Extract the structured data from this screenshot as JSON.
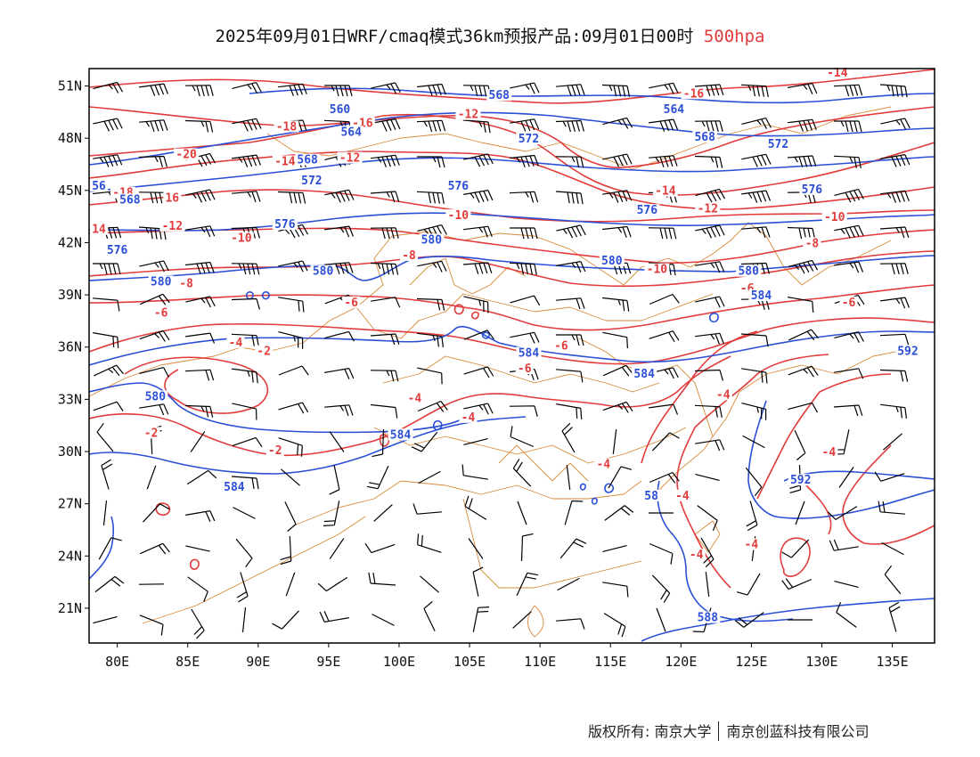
{
  "title": {
    "main": "2025年09月01日WRF/cmaq模式36km预报产品:09月01日00时",
    "level": "500hpa"
  },
  "colors": {
    "geopotential_contour": "#2a4fd6",
    "temperature_contour": "#e23b3b",
    "boundary": "#d98a3a",
    "wind_barb": "#000000",
    "frame": "#000000"
  },
  "axes": {
    "lon_range": [
      78,
      138
    ],
    "lat_range": [
      19,
      52
    ],
    "x_ticks": [
      "80E",
      "85E",
      "90E",
      "95E",
      "100E",
      "105E",
      "110E",
      "115E",
      "120E",
      "125E",
      "130E",
      "135E"
    ],
    "x_tick_values": [
      80,
      85,
      90,
      95,
      100,
      105,
      110,
      115,
      120,
      125,
      130,
      135
    ],
    "y_ticks": [
      "51N",
      "48N",
      "45N",
      "42N",
      "39N",
      "36N",
      "33N",
      "30N",
      "27N",
      "24N",
      "21N"
    ],
    "y_tick_values": [
      51,
      48,
      45,
      42,
      39,
      36,
      33,
      30,
      27,
      24,
      21
    ]
  },
  "layers": {
    "geopotential_height_labels": [
      {
        "text": "568",
        "lon": 107.1,
        "lat": 50.3
      },
      {
        "text": "560",
        "lon": 95.8,
        "lat": 49.5
      },
      {
        "text": "564",
        "lon": 119.5,
        "lat": 49.5
      },
      {
        "text": "564",
        "lon": 96.6,
        "lat": 48.2
      },
      {
        "text": "572",
        "lon": 109.2,
        "lat": 47.8
      },
      {
        "text": "568",
        "lon": 121.7,
        "lat": 47.9
      },
      {
        "text": "568",
        "lon": 93.5,
        "lat": 46.6
      },
      {
        "text": "572",
        "lon": 93.8,
        "lat": 45.4
      },
      {
        "text": "572",
        "lon": 126.9,
        "lat": 47.5
      },
      {
        "text": "576",
        "lon": 104.2,
        "lat": 45.1
      },
      {
        "text": "576",
        "lon": 129.3,
        "lat": 44.9
      },
      {
        "text": "56",
        "lon": 78.7,
        "lat": 45.1
      },
      {
        "text": "568",
        "lon": 80.9,
        "lat": 44.3
      },
      {
        "text": "576",
        "lon": 117.6,
        "lat": 43.7
      },
      {
        "text": "576",
        "lon": 91.9,
        "lat": 42.9
      },
      {
        "text": "576",
        "lon": 80.0,
        "lat": 41.4
      },
      {
        "text": "580",
        "lon": 102.3,
        "lat": 42.0
      },
      {
        "text": "580",
        "lon": 115.1,
        "lat": 40.8
      },
      {
        "text": "580",
        "lon": 94.6,
        "lat": 40.2
      },
      {
        "text": "580",
        "lon": 83.1,
        "lat": 39.6
      },
      {
        "text": "580",
        "lon": 124.8,
        "lat": 40.2
      },
      {
        "text": "584",
        "lon": 125.7,
        "lat": 38.8
      },
      {
        "text": "584",
        "lon": 109.2,
        "lat": 35.5
      },
      {
        "text": "584",
        "lon": 117.4,
        "lat": 34.3
      },
      {
        "text": "592",
        "lon": 136.1,
        "lat": 35.6
      },
      {
        "text": "580",
        "lon": 82.7,
        "lat": 33.0
      },
      {
        "text": "584",
        "lon": 100.1,
        "lat": 30.8
      },
      {
        "text": "592",
        "lon": 128.5,
        "lat": 28.2
      },
      {
        "text": "584",
        "lon": 88.3,
        "lat": 27.8
      },
      {
        "text": "58",
        "lon": 117.9,
        "lat": 27.3
      },
      {
        "text": "588",
        "lon": 121.9,
        "lat": 20.3
      }
    ],
    "temperature_labels": [
      {
        "text": "-16",
        "lon": 120.9,
        "lat": 50.4
      },
      {
        "text": "-14",
        "lon": 131.1,
        "lat": 51.6
      },
      {
        "text": "-12",
        "lon": 104.9,
        "lat": 49.2
      },
      {
        "text": "-18",
        "lon": 92.0,
        "lat": 48.5
      },
      {
        "text": "-16",
        "lon": 97.4,
        "lat": 48.7
      },
      {
        "text": "-20",
        "lon": 84.9,
        "lat": 46.9
      },
      {
        "text": "-14",
        "lon": 91.9,
        "lat": 46.5
      },
      {
        "text": "-12",
        "lon": 96.5,
        "lat": 46.7
      },
      {
        "text": "-18",
        "lon": 80.4,
        "lat": 44.7
      },
      {
        "text": "16",
        "lon": 83.9,
        "lat": 44.4
      },
      {
        "text": "-14",
        "lon": 118.9,
        "lat": 44.8
      },
      {
        "text": "-12",
        "lon": 121.9,
        "lat": 43.8
      },
      {
        "text": "-10",
        "lon": 104.2,
        "lat": 43.4
      },
      {
        "text": "-10",
        "lon": 130.9,
        "lat": 43.3
      },
      {
        "text": "-12",
        "lon": 83.9,
        "lat": 42.8
      },
      {
        "text": "14",
        "lon": 78.7,
        "lat": 42.6
      },
      {
        "text": "-10",
        "lon": 88.8,
        "lat": 42.1
      },
      {
        "text": "-8",
        "lon": 129.3,
        "lat": 41.8
      },
      {
        "text": "-8",
        "lon": 100.7,
        "lat": 41.1
      },
      {
        "text": "-10",
        "lon": 118.3,
        "lat": 40.3
      },
      {
        "text": "-8",
        "lon": 84.9,
        "lat": 39.5
      },
      {
        "text": "-6",
        "lon": 124.7,
        "lat": 39.2
      },
      {
        "text": "-6",
        "lon": 96.6,
        "lat": 38.4
      },
      {
        "text": "-6",
        "lon": 131.9,
        "lat": 38.4
      },
      {
        "text": "-6",
        "lon": 83.1,
        "lat": 37.8
      },
      {
        "text": "-4",
        "lon": 88.4,
        "lat": 36.1
      },
      {
        "text": "-6",
        "lon": 111.5,
        "lat": 35.9
      },
      {
        "text": "-2",
        "lon": 90.4,
        "lat": 35.6
      },
      {
        "text": "-6",
        "lon": 108.9,
        "lat": 34.6
      },
      {
        "text": "-4",
        "lon": 101.1,
        "lat": 32.9
      },
      {
        "text": "-4",
        "lon": 123.0,
        "lat": 33.1
      },
      {
        "text": "-4",
        "lon": 104.9,
        "lat": 31.8
      },
      {
        "text": "-2",
        "lon": 82.4,
        "lat": 30.9
      },
      {
        "text": "-2",
        "lon": 91.2,
        "lat": 29.9
      },
      {
        "text": "-4",
        "lon": 130.5,
        "lat": 29.8
      },
      {
        "text": "-4",
        "lon": 114.5,
        "lat": 29.1
      },
      {
        "text": "-4",
        "lon": 120.1,
        "lat": 27.3
      },
      {
        "text": "-4",
        "lon": 125.0,
        "lat": 24.5
      },
      {
        "text": "-4",
        "lon": 121.1,
        "lat": 23.9
      }
    ]
  },
  "footer": {
    "copyright": "版权所有: 南京大学",
    "company": "南京创蓝科技有限公司"
  }
}
